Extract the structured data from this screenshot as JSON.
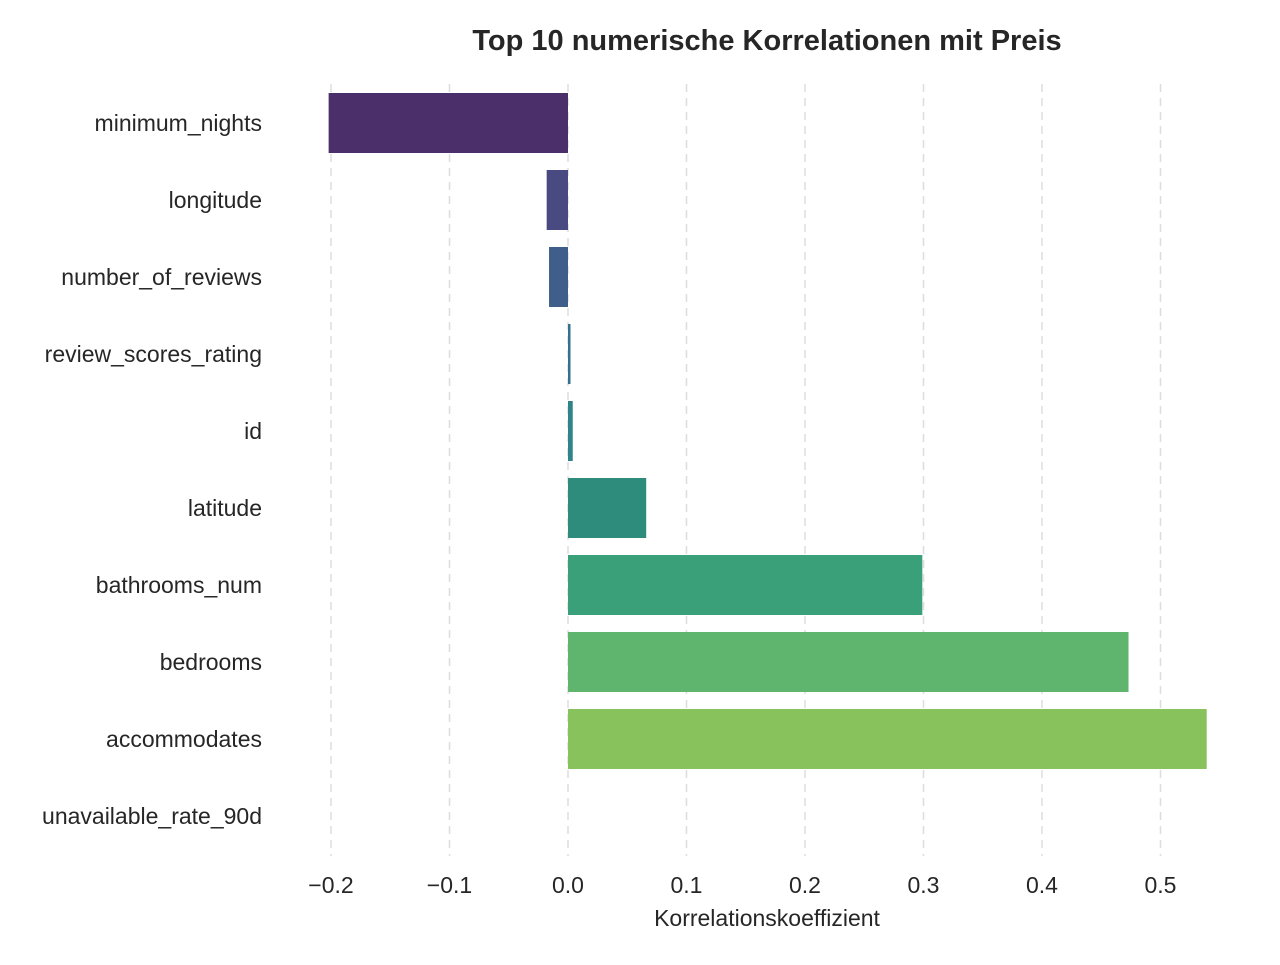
{
  "chart_data": {
    "type": "bar",
    "orientation": "horizontal",
    "title": "Top 10 numerische Korrelationen mit Preis",
    "xlabel": "Korrelationskoeffizient",
    "ylabel": "",
    "categories": [
      "minimum_nights",
      "longitude",
      "number_of_reviews",
      "review_scores_rating",
      "id",
      "latitude",
      "bathrooms_num",
      "bedrooms",
      "accommodates",
      "unavailable_rate_90d"
    ],
    "values": [
      -0.202,
      -0.018,
      -0.016,
      0.002,
      0.004,
      0.066,
      0.299,
      0.473,
      0.539,
      0.0
    ],
    "colors": [
      "#4a2f6a",
      "#4a4a82",
      "#3f5f8a",
      "#35708c",
      "#2f8489",
      "#2e8c7c",
      "#3aa07a",
      "#5fb46e",
      "#88c25c",
      "#b6d24a"
    ],
    "xlim": [
      -0.2,
      0.54
    ],
    "xticks": [
      -0.2,
      -0.1,
      0.0,
      0.1,
      0.2,
      0.3,
      0.4,
      0.5
    ],
    "xtick_labels": [
      "−0.2",
      "−0.1",
      "0.0",
      "0.1",
      "0.2",
      "0.3",
      "0.4",
      "0.5"
    ],
    "grid": "x-dashed",
    "legend": "none"
  }
}
